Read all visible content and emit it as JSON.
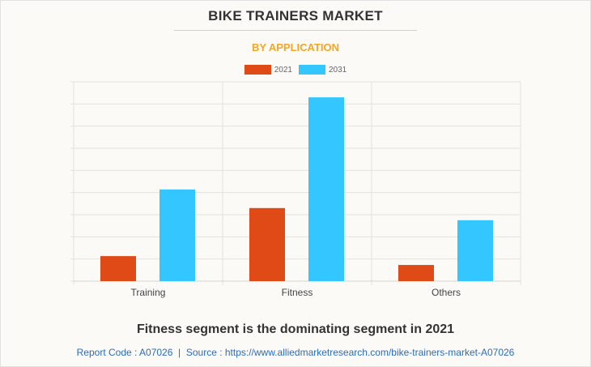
{
  "chart_data": {
    "type": "bar",
    "title": "BIKE TRAINERS MARKET",
    "subtitle": "BY APPLICATION",
    "categories": [
      "Training",
      "Fitness",
      "Others"
    ],
    "series": [
      {
        "name": "2021",
        "color": "#e04a16",
        "values": [
          1.13,
          3.3,
          0.73
        ]
      },
      {
        "name": "2031",
        "color": "#33c6ff",
        "values": [
          4.14,
          8.3,
          2.75
        ]
      }
    ],
    "xlabel": "",
    "ylabel": "",
    "ylim": [
      0,
      9
    ],
    "grid": true,
    "legend": "top-center"
  },
  "caption": "Fitness segment is the dominating segment in 2021",
  "source": "Report Code : A07026  |  Source : https://www.alliedmarketresearch.com/bike-trainers-market-A07026"
}
